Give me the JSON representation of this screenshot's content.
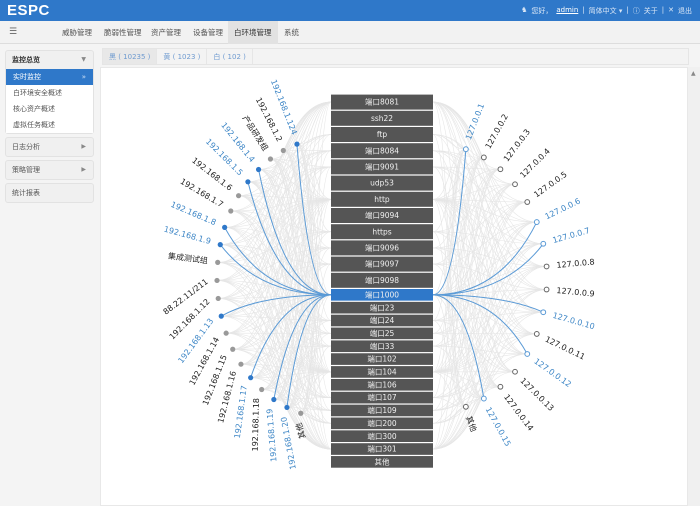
{
  "header": {
    "logo": "ESPC",
    "greeting": "您好，",
    "user": "admin",
    "language": "简体中文 ▾",
    "about": "关于",
    "logout": "退出"
  },
  "nav": {
    "items": [
      "威胁管理",
      "脆弱性管理",
      "资产管理",
      "设备管理",
      "白环境管理",
      "系统"
    ],
    "active": 4
  },
  "sidebar": {
    "group": "监控总览",
    "sub": [
      "实时监控",
      "白环境安全概述",
      "核心资产概述",
      "虚拟任务概述"
    ],
    "active_sub": 0,
    "others": [
      "日志分析",
      "策略管理",
      "统计报表"
    ]
  },
  "tabs": [
    "黑 ( 10235 )",
    "黄 ( 1023 )",
    "白 ( 102 )"
  ],
  "colors": {
    "accent": "#2f78c9",
    "highlight_line": "#5a9ad6",
    "port_bg": "#555555",
    "node_gray": "#999999",
    "label_blue": "#3d86c6"
  },
  "diagram": {
    "ports": [
      "端口8081",
      "ssh22",
      "ftp",
      "端口8084",
      "端口9091",
      "udp53",
      "http",
      "端口9094",
      "https",
      "端口9096",
      "端口9097",
      "端口9098",
      "端口1000",
      "端口23",
      "端口24",
      "端口25",
      "端口33",
      "端口102",
      "端口104",
      "端口106",
      "端口107",
      "端口109",
      "端口200",
      "端口300",
      "端口301",
      "其他"
    ],
    "active_port": "端口1000",
    "sources": [
      {
        "label": "192.168.1.124",
        "hl": true
      },
      {
        "label": "192.168.1.2",
        "hl": false
      },
      {
        "label": "产品研发组",
        "hl": false
      },
      {
        "label": "192.168.1.4",
        "hl": true
      },
      {
        "label": "192.168.1.5",
        "hl": true
      },
      {
        "label": "192.168.1.6",
        "hl": false
      },
      {
        "label": "192.168.1.7",
        "hl": false
      },
      {
        "label": "192.168.1.8",
        "hl": true
      },
      {
        "label": "192.168.1.9",
        "hl": true
      },
      {
        "label": "集成测试组",
        "hl": false
      },
      {
        "label": "88.22.11/211",
        "hl": false
      },
      {
        "label": "192.168.1.12",
        "hl": false
      },
      {
        "label": "192.168.1.13",
        "hl": true
      },
      {
        "label": "192.168.1.14",
        "hl": false
      },
      {
        "label": "192.168.1.15",
        "hl": false
      },
      {
        "label": "192.168.1.16",
        "hl": false
      },
      {
        "label": "192.168.1.17",
        "hl": true
      },
      {
        "label": "192.168.1.18",
        "hl": false
      },
      {
        "label": "192.168.1.19",
        "hl": true
      },
      {
        "label": "192.168.1.20",
        "hl": true
      },
      {
        "label": "其他",
        "hl": false
      }
    ],
    "targets": [
      {
        "label": "127.0.0.1",
        "hl": true
      },
      {
        "label": "127.0.0.2",
        "hl": false
      },
      {
        "label": "127.0.0.3",
        "hl": false
      },
      {
        "label": "127.0.0.4",
        "hl": false
      },
      {
        "label": "127.0.0.5",
        "hl": false
      },
      {
        "label": "127.0.0.6",
        "hl": true
      },
      {
        "label": "127.0.0.7",
        "hl": true
      },
      {
        "label": "127.0.0.8",
        "hl": false
      },
      {
        "label": "127.0.0.9",
        "hl": false
      },
      {
        "label": "127.0.0.10",
        "hl": true
      },
      {
        "label": "127.0.0.11",
        "hl": false
      },
      {
        "label": "127.0.0.12",
        "hl": true
      },
      {
        "label": "127.0.0.13",
        "hl": false
      },
      {
        "label": "127.0.0.14",
        "hl": false
      },
      {
        "label": "127.0.0.15",
        "hl": true
      },
      {
        "label": "其他",
        "hl": false
      }
    ]
  }
}
